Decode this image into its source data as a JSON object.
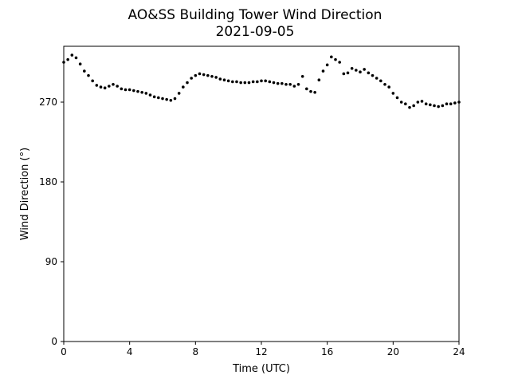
{
  "chart_data": {
    "type": "scatter",
    "title": "AO&SS Building Tower Wind Direction",
    "subtitle": "2021-09-05",
    "xlabel": "Time (UTC)",
    "ylabel": "Wind Direction (°)",
    "xlim": [
      0,
      24
    ],
    "ylim": [
      0,
      333
    ],
    "x_ticks": [
      0,
      4,
      8,
      12,
      16,
      20,
      24
    ],
    "y_ticks": [
      0,
      90,
      180,
      270
    ],
    "grid": false,
    "marker_color": "#000000",
    "series": [
      {
        "x": [
          0.0,
          0.25,
          0.5,
          0.75,
          1.0,
          1.25,
          1.5,
          1.75,
          2.0,
          2.25,
          2.5,
          2.75,
          3.0,
          3.25,
          3.5,
          3.75,
          4.0,
          4.25,
          4.5,
          4.75,
          5.0,
          5.25,
          5.5,
          5.75,
          6.0,
          6.25,
          6.5,
          6.75,
          7.0,
          7.25,
          7.5,
          7.75,
          8.0,
          8.25,
          8.5,
          8.75,
          9.0,
          9.25,
          9.5,
          9.75,
          10.0,
          10.25,
          10.5,
          10.75,
          11.0,
          11.25,
          11.5,
          11.75,
          12.0,
          12.25,
          12.5,
          12.75,
          13.0,
          13.25,
          13.5,
          13.75,
          14.0,
          14.25,
          14.5,
          14.75,
          15.0,
          15.25,
          15.5,
          15.75,
          16.0,
          16.25,
          16.5,
          16.75,
          17.0,
          17.25,
          17.5,
          17.75,
          18.0,
          18.25,
          18.5,
          18.75,
          19.0,
          19.25,
          19.5,
          19.75,
          20.0,
          20.25,
          20.5,
          20.75,
          21.0,
          21.25,
          21.5,
          21.75,
          22.0,
          22.25,
          22.5,
          22.75,
          23.0,
          23.25,
          23.5,
          23.75,
          24.0
        ],
        "y": [
          315,
          318,
          323,
          320,
          313,
          305,
          300,
          294,
          289,
          287,
          286,
          288,
          290,
          288,
          285,
          284,
          284,
          283,
          282,
          281,
          280,
          278,
          276,
          275,
          274,
          273,
          272,
          274,
          280,
          287,
          292,
          297,
          300,
          302,
          301,
          300,
          299,
          298,
          296,
          295,
          294,
          293,
          293,
          292,
          292,
          292,
          293,
          293,
          294,
          294,
          293,
          292,
          291,
          291,
          290,
          290,
          288,
          290,
          299,
          285,
          282,
          281,
          295,
          305,
          312,
          321,
          318,
          315,
          302,
          303,
          308,
          306,
          304,
          307,
          303,
          300,
          297,
          294,
          290,
          287,
          280,
          275,
          270,
          268,
          264,
          266,
          270,
          271,
          268,
          267,
          266,
          265,
          266,
          268,
          268,
          269,
          270
        ]
      }
    ]
  }
}
